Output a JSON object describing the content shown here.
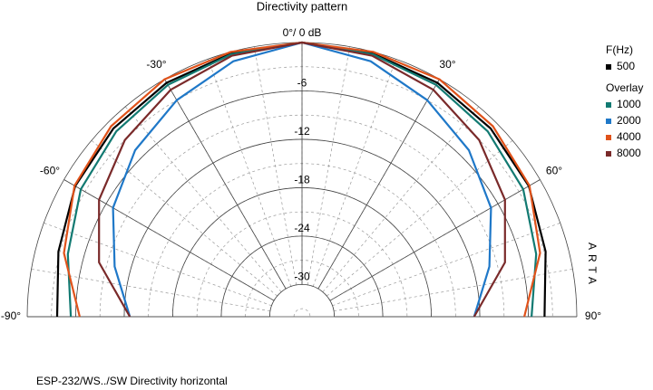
{
  "chart_data": {
    "type": "polar",
    "title": "Directivity pattern",
    "top_label": "0°/ 0 dB",
    "footer": "ESP-232/WS../SW   Directivity horizontal",
    "side_label": "ARTA",
    "legend_title": "F(Hz)",
    "overlay_title": "Overlay",
    "rlim": [
      -34,
      0
    ],
    "rticks": [
      -6,
      -12,
      -18,
      -24,
      -30
    ],
    "xlim": [
      -90,
      90
    ],
    "xticks": [
      {
        "value": -90,
        "label": "-90°"
      },
      {
        "value": -60,
        "label": "-60°"
      },
      {
        "value": -30,
        "label": "-30°"
      },
      {
        "value": 30,
        "label": "30°"
      },
      {
        "value": 60,
        "label": "60°"
      },
      {
        "value": 90,
        "label": "90°"
      }
    ],
    "x": [
      -90,
      -75,
      -60,
      -45,
      -30,
      -15,
      0,
      15,
      30,
      45,
      60,
      75,
      90
    ],
    "series": [
      {
        "name": "500",
        "color": "#000000",
        "values": [
          -3.7,
          -2.8,
          -1.6,
          -1.0,
          -0.5,
          -0.2,
          0,
          -0.2,
          -0.5,
          -1.0,
          -1.6,
          -2.8,
          -4.0
        ]
      },
      {
        "name": "1000",
        "color": "#127a72",
        "values": [
          -5.4,
          -4.0,
          -2.4,
          -1.5,
          -0.8,
          -0.3,
          0,
          -0.3,
          -0.8,
          -1.5,
          -2.4,
          -4.0,
          -5.6
        ]
      },
      {
        "name": "2000",
        "color": "#1f78c8",
        "values": [
          -12.7,
          -10,
          -7,
          -4.8,
          -3,
          -1.2,
          0,
          -1.2,
          -3,
          -4.8,
          -7,
          -10,
          -12.7
        ]
      },
      {
        "name": "4000",
        "color": "#e0521a",
        "values": [
          -6.5,
          -3.5,
          -1.5,
          -0.6,
          0,
          0,
          0,
          0,
          0,
          -0.6,
          -1.5,
          -3.5,
          -6.5
        ]
      },
      {
        "name": "8000",
        "color": "#7a2a2a",
        "values": [
          -12.7,
          -8,
          -5,
          -3,
          -1.5,
          -0.5,
          0,
          -0.5,
          -1.5,
          -3,
          -5,
          -8,
          -12.7
        ]
      }
    ]
  }
}
